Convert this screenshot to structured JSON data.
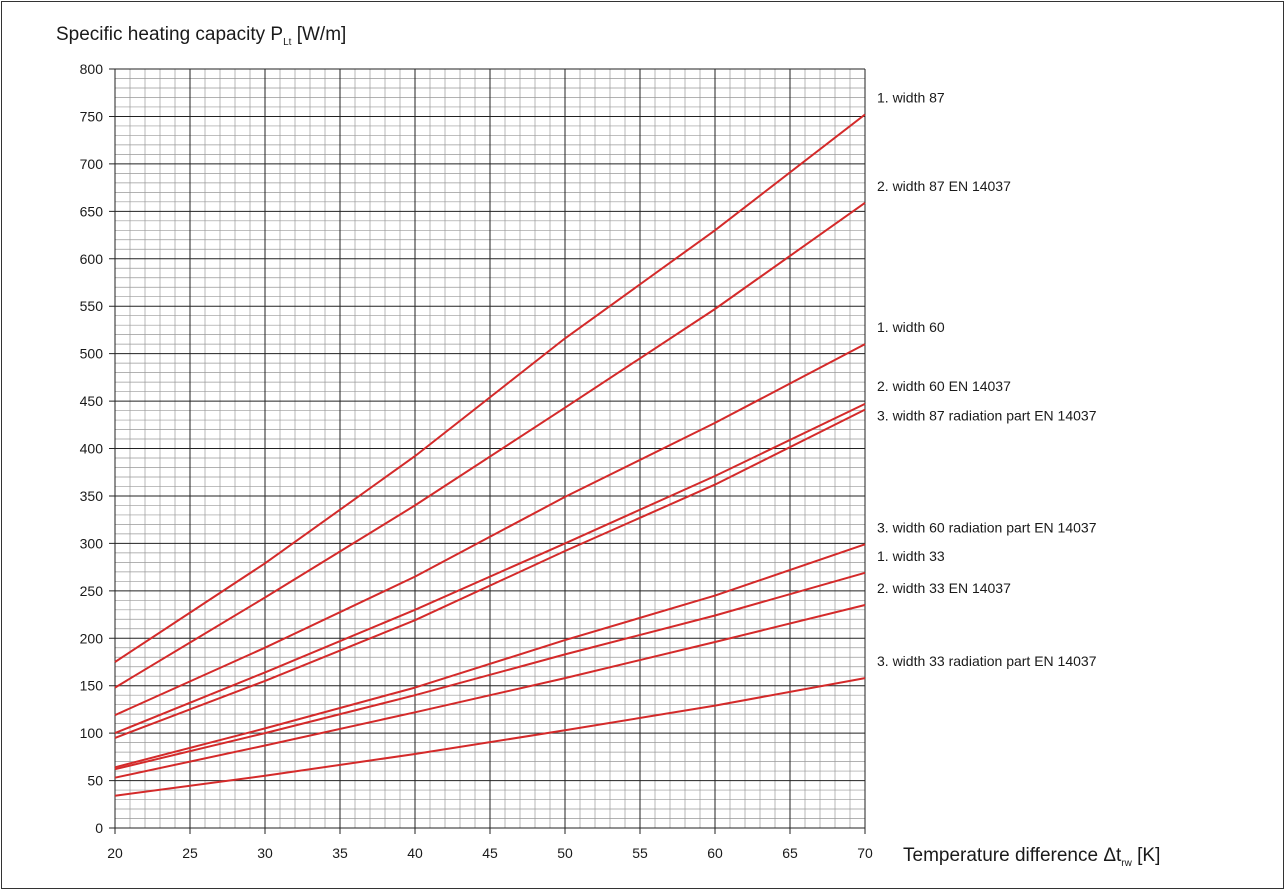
{
  "chart_data": {
    "type": "line",
    "title": "",
    "ylabel": "Specific heating capacity P",
    "ylabel_sub": "Lt",
    "ylabel_unit": " [W/m]",
    "xlabel": "Temperature difference Δt",
    "xlabel_sub": "rw",
    "xlabel_unit": " [K]",
    "xlim": [
      20,
      70
    ],
    "ylim": [
      0,
      800
    ],
    "x_ticks": [
      "20",
      "25",
      "30",
      "35",
      "40",
      "45",
      "50",
      "55",
      "60",
      "65",
      "70"
    ],
    "y_ticks": [
      "0",
      "50",
      "100",
      "150",
      "200",
      "250",
      "300",
      "350",
      "400",
      "450",
      "500",
      "550",
      "600",
      "650",
      "700",
      "750",
      "800"
    ],
    "grid": true,
    "line_color": "#d42a2a",
    "grid_color": "#999999",
    "x": [
      20,
      30,
      40,
      50,
      60,
      70
    ],
    "series": [
      {
        "name": "1. width 87",
        "values": [
          175,
          279,
          392,
          516,
          630,
          752
        ]
      },
      {
        "name": "2. width 87 EN 14037",
        "values": [
          148,
          243,
          340,
          443,
          547,
          659
        ]
      },
      {
        "name": "1. width 60",
        "values": [
          119,
          190,
          265,
          349,
          427,
          510
        ]
      },
      {
        "name": "2. width 60 EN 14037",
        "values": [
          100,
          164,
          230,
          300,
          371,
          447
        ]
      },
      {
        "name": "3. width 87 radiation part EN 14037",
        "values": [
          95,
          155,
          219,
          292,
          362,
          441
        ]
      },
      {
        "name": "3. width 60 radiation part EN 14037",
        "values": [
          64,
          105,
          148,
          198,
          245,
          299
        ]
      },
      {
        "name": "1. width 33",
        "values": [
          62,
          100,
          140,
          183,
          224,
          269
        ]
      },
      {
        "name": "2. width 33 EN 14037",
        "values": [
          53,
          87,
          122,
          158,
          196,
          235
        ]
      },
      {
        "name": "3. width 33 radiation part EN 14037",
        "values": [
          34,
          55,
          78,
          103,
          129,
          158
        ]
      }
    ],
    "legend_labels": [
      {
        "text": "1. width 87",
        "y": 752
      },
      {
        "text": "2. width 87 EN 14037",
        "y": 659
      },
      {
        "text": "1. width 60",
        "y": 510
      },
      {
        "text": "2. width 60 EN 14037",
        "y": 452
      },
      {
        "text": "3. width 87 radiation part EN 14037",
        "y": 441
      },
      {
        "text": "3. width 60 radiation part EN 14037",
        "y": 299
      },
      {
        "text": "1. width 33",
        "y": 269
      },
      {
        "text": "2. width 33 EN 14037",
        "y": 235
      },
      {
        "text": "3. width 33 radiation part EN 14037",
        "y": 158
      }
    ]
  }
}
